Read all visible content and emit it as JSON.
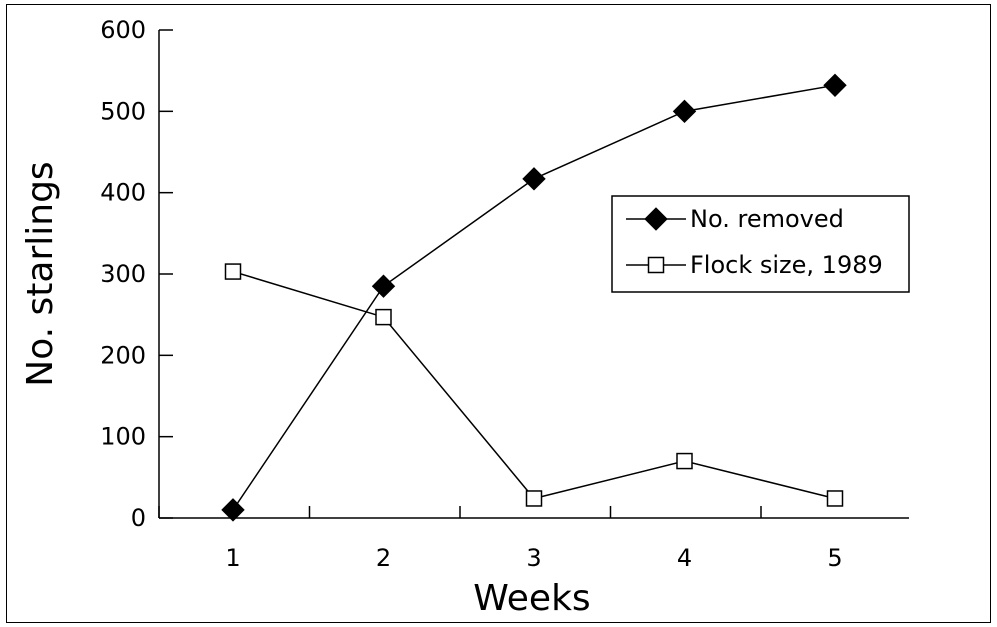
{
  "chart_data": {
    "type": "line",
    "xlabel": "Weeks",
    "ylabel": "No. starlings",
    "x": [
      1,
      2,
      3,
      4,
      5
    ],
    "x_tick_labels": [
      "1",
      "2",
      "3",
      "4",
      "5"
    ],
    "ylim": [
      0,
      600
    ],
    "y_ticks": [
      0,
      100,
      200,
      300,
      400,
      500,
      600
    ],
    "y_tick_labels": [
      "0",
      "100",
      "200",
      "300",
      "400",
      "500",
      "600"
    ],
    "grid": false,
    "legend_position": "right",
    "series": [
      {
        "name": "No. removed",
        "marker": "filled-diamond",
        "color": "#000000",
        "values": [
          10,
          285,
          417,
          500,
          532
        ]
      },
      {
        "name": "Flock size, 1989",
        "marker": "open-square",
        "color": "#000000",
        "values": [
          303,
          247,
          24,
          70,
          24
        ]
      }
    ]
  }
}
